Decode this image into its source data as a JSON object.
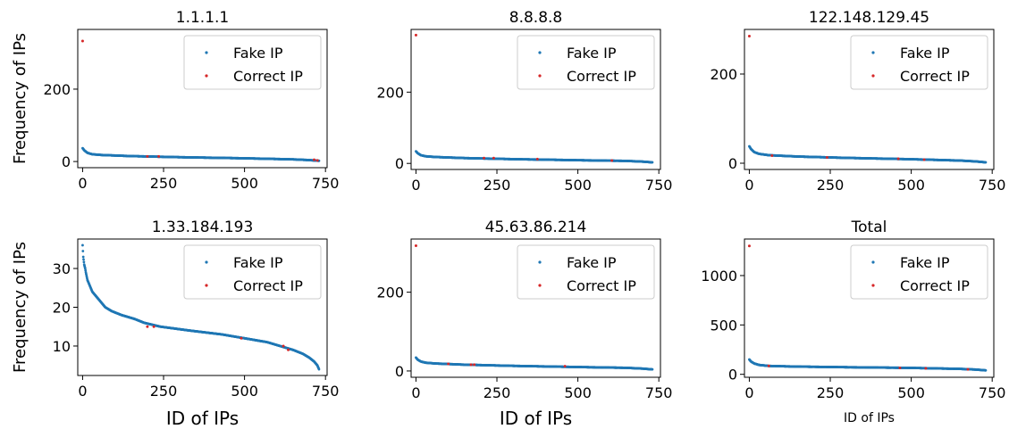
{
  "figure": {
    "legend_labels": [
      "Fake IP",
      "Correct IP"
    ],
    "colors": {
      "fake": "#1f77b4",
      "correct": "#d62728"
    }
  },
  "chart_data": [
    {
      "type": "scatter",
      "title": "1.1.1.1",
      "ylabel": "Frequency of IPs",
      "xlabel": "",
      "xlim": [
        -15,
        755
      ],
      "ylim": [
        -17,
        365
      ],
      "xticks": [
        0,
        250,
        500,
        750
      ],
      "yticks": [
        0,
        200
      ],
      "legend": "top-right",
      "grid": false,
      "series": [
        {
          "name": "Fake IP",
          "curve": [
            [
              0,
              37
            ],
            [
              5,
              31
            ],
            [
              15,
              24
            ],
            [
              30,
              20
            ],
            [
              60,
              18
            ],
            [
              150,
              15
            ],
            [
              300,
              12
            ],
            [
              500,
              9
            ],
            [
              650,
              6
            ],
            [
              700,
              4
            ],
            [
              730,
              2
            ]
          ]
        },
        {
          "name": "Correct IP",
          "points": [
            [
              0,
              333
            ],
            [
              200,
              14
            ],
            [
              235,
              14
            ],
            [
              715,
              5
            ],
            [
              725,
              3
            ]
          ]
        }
      ]
    },
    {
      "type": "scatter",
      "title": "8.8.8.8",
      "ylabel": "",
      "xlabel": "",
      "xlim": [
        -15,
        755
      ],
      "ylim": [
        -17,
        376
      ],
      "xticks": [
        0,
        250,
        500,
        750
      ],
      "yticks": [
        0,
        200
      ],
      "legend": "top-right",
      "grid": false,
      "series": [
        {
          "name": "Fake IP",
          "curve": [
            [
              0,
              34
            ],
            [
              5,
              29
            ],
            [
              15,
              23
            ],
            [
              30,
              20
            ],
            [
              60,
              18
            ],
            [
              150,
              15
            ],
            [
              300,
              12
            ],
            [
              500,
              9
            ],
            [
              650,
              7
            ],
            [
              700,
              5
            ],
            [
              730,
              3
            ]
          ]
        },
        {
          "name": "Correct IP",
          "points": [
            [
              0,
              360
            ],
            [
              210,
              15
            ],
            [
              240,
              15
            ],
            [
              375,
              12
            ],
            [
              605,
              8
            ]
          ]
        }
      ]
    },
    {
      "type": "scatter",
      "title": "122.148.129.45",
      "ylabel": "",
      "xlabel": "",
      "xlim": [
        -15,
        755
      ],
      "ylim": [
        -14,
        300
      ],
      "xticks": [
        0,
        250,
        500,
        750
      ],
      "yticks": [
        0,
        200
      ],
      "legend": "top-right",
      "grid": false,
      "series": [
        {
          "name": "Fake IP",
          "curve": [
            [
              0,
              38
            ],
            [
              5,
              32
            ],
            [
              15,
              25
            ],
            [
              30,
              21
            ],
            [
              60,
              18
            ],
            [
              150,
              15
            ],
            [
              300,
              12
            ],
            [
              500,
              9
            ],
            [
              650,
              6
            ],
            [
              700,
              4
            ],
            [
              730,
              2
            ]
          ]
        },
        {
          "name": "Correct IP",
          "points": [
            [
              0,
              285
            ],
            [
              70,
              17
            ],
            [
              240,
              13
            ],
            [
              460,
              10
            ],
            [
              540,
              8
            ]
          ]
        }
      ]
    },
    {
      "type": "scatter",
      "title": "1.33.184.193",
      "ylabel": "Frequency of IPs",
      "xlabel": "ID of IPs",
      "xlim": [
        -15,
        755
      ],
      "ylim": [
        2.4,
        37.6
      ],
      "xticks": [
        0,
        250,
        500,
        750
      ],
      "yticks": [
        10,
        20,
        30
      ],
      "legend": "top-right",
      "grid": false,
      "series": [
        {
          "name": "Fake IP",
          "curve": [
            [
              0,
              36
            ],
            [
              2,
              33
            ],
            [
              5,
              31
            ],
            [
              8,
              30
            ],
            [
              10,
              29
            ],
            [
              15,
              27
            ],
            [
              20,
              26
            ],
            [
              25,
              25
            ],
            [
              30,
              24
            ],
            [
              40,
              23
            ],
            [
              50,
              22
            ],
            [
              60,
              21
            ],
            [
              70,
              20
            ],
            [
              90,
              19
            ],
            [
              120,
              18
            ],
            [
              160,
              17
            ],
            [
              190,
              16
            ],
            [
              240,
              15
            ],
            [
              330,
              14
            ],
            [
              430,
              13
            ],
            [
              500,
              12
            ],
            [
              570,
              11
            ],
            [
              610,
              10
            ],
            [
              650,
              9
            ],
            [
              680,
              8
            ],
            [
              700,
              7
            ],
            [
              715,
              6
            ],
            [
              725,
              5
            ],
            [
              730,
              4
            ]
          ]
        },
        {
          "name": "Correct IP",
          "points": [
            [
              200,
              15
            ],
            [
              220,
              15
            ],
            [
              490,
              12
            ],
            [
              620,
              10
            ],
            [
              635,
              9
            ]
          ]
        }
      ]
    },
    {
      "type": "scatter",
      "title": "45.63.86.214",
      "ylabel": "",
      "xlabel": "ID of IPs",
      "xlim": [
        -15,
        755
      ],
      "ylim": [
        -16,
        335
      ],
      "xticks": [
        0,
        250,
        500,
        750
      ],
      "yticks": [
        0,
        200
      ],
      "legend": "top-right",
      "grid": false,
      "series": [
        {
          "name": "Fake IP",
          "curve": [
            [
              0,
              34
            ],
            [
              5,
              29
            ],
            [
              15,
              24
            ],
            [
              30,
              21
            ],
            [
              60,
              19
            ],
            [
              150,
              16
            ],
            [
              300,
              13
            ],
            [
              500,
              10
            ],
            [
              650,
              8
            ],
            [
              700,
              6
            ],
            [
              730,
              4
            ]
          ]
        },
        {
          "name": "Correct IP",
          "points": [
            [
              0,
              318
            ],
            [
              100,
              18
            ],
            [
              170,
              16
            ],
            [
              180,
              16
            ],
            [
              460,
              12
            ]
          ]
        }
      ]
    },
    {
      "type": "scatter",
      "title": "Total",
      "ylabel": "",
      "xlabel": "ID of IPs",
      "xlim": [
        -15,
        755
      ],
      "ylim": [
        -30,
        1370
      ],
      "xticks": [
        0,
        250,
        500,
        750
      ],
      "yticks": [
        0,
        500,
        1000
      ],
      "legend": "top-right",
      "grid": false,
      "series": [
        {
          "name": "Fake IP",
          "curve": [
            [
              0,
              150
            ],
            [
              5,
              130
            ],
            [
              15,
              110
            ],
            [
              30,
              95
            ],
            [
              60,
              85
            ],
            [
              150,
              78
            ],
            [
              300,
              72
            ],
            [
              500,
              65
            ],
            [
              650,
              55
            ],
            [
              700,
              48
            ],
            [
              730,
              40
            ]
          ]
        },
        {
          "name": "Correct IP",
          "points": [
            [
              0,
              1300
            ],
            [
              60,
              85
            ],
            [
              465,
              65
            ],
            [
              545,
              60
            ],
            [
              675,
              50
            ]
          ]
        }
      ]
    }
  ]
}
